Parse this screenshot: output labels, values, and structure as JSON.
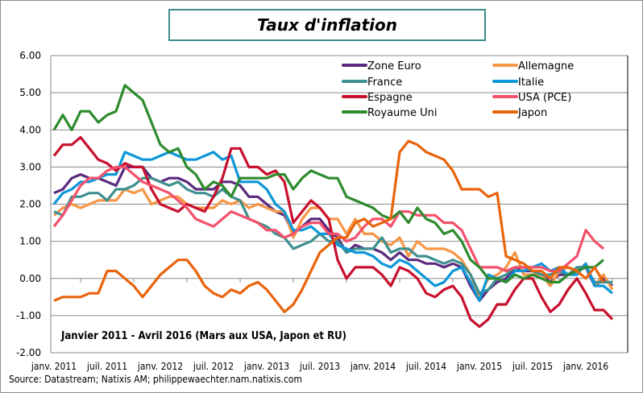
{
  "chart_data": {
    "type": "line",
    "title": "Taux d'inflation",
    "annotation": "Janvier 2011 - Avril 2016 (Mars aux USA, Japon et RU)",
    "source": "Source: Datastream; Natixis AM; philippewaechter.nam.natixis.com",
    "x_start": "2011-01",
    "x_frequency": "monthly",
    "x_tick_labels": [
      "janv. 2011",
      "juil. 2011",
      "janv. 2012",
      "juil. 2012",
      "janv. 2013",
      "juil. 2013",
      "janv. 2014",
      "juil. 2014",
      "janv. 2015",
      "juil. 2015",
      "janv. 2016"
    ],
    "y_tick_labels": [
      "6.00",
      "5.00",
      "4.00",
      "3.00",
      "2.00",
      "1.00",
      "0.00",
      "-1.00",
      "-2.00"
    ],
    "ylim": [
      -2,
      6
    ],
    "grid": true,
    "legend_placement": "top-right",
    "series": [
      {
        "name": "Zone Euro",
        "color": "#5b2a7e",
        "values": [
          2.3,
          2.4,
          2.7,
          2.8,
          2.7,
          2.7,
          2.6,
          2.5,
          3.0,
          3.0,
          3.0,
          2.7,
          2.6,
          2.7,
          2.7,
          2.6,
          2.4,
          2.4,
          2.4,
          2.6,
          2.6,
          2.5,
          2.2,
          2.2,
          2.0,
          1.8,
          1.7,
          1.2,
          1.4,
          1.6,
          1.6,
          1.3,
          1.1,
          0.7,
          0.9,
          0.8,
          0.8,
          0.7,
          0.5,
          0.7,
          0.5,
          0.5,
          0.4,
          0.4,
          0.3,
          0.4,
          0.3,
          -0.2,
          -0.6,
          -0.3,
          -0.1,
          0.0,
          0.3,
          0.2,
          0.2,
          0.1,
          -0.1,
          0.1,
          0.1,
          0.2,
          0.3,
          -0.2,
          0.0,
          -0.2
        ]
      },
      {
        "name": "Allemagne",
        "color": "#f79646",
        "values": [
          1.7,
          1.9,
          2.0,
          1.9,
          2.0,
          2.1,
          2.1,
          2.1,
          2.4,
          2.3,
          2.4,
          2.0,
          2.1,
          2.2,
          2.2,
          2.0,
          1.9,
          1.9,
          1.9,
          2.1,
          2.0,
          2.1,
          1.9,
          2.0,
          1.9,
          1.8,
          1.8,
          1.1,
          1.6,
          1.9,
          1.9,
          1.6,
          1.6,
          1.2,
          1.6,
          1.2,
          1.2,
          1.0,
          0.9,
          1.1,
          0.6,
          1.0,
          0.8,
          0.8,
          0.8,
          0.7,
          0.5,
          0.1,
          -0.5,
          0.0,
          0.1,
          0.3,
          0.7,
          0.1,
          0.1,
          0.1,
          -0.2,
          0.2,
          0.3,
          0.2,
          0.4,
          -0.2,
          0.1,
          -0.3
        ]
      },
      {
        "name": "France",
        "color": "#3f8f8f",
        "values": [
          1.8,
          1.7,
          2.2,
          2.2,
          2.3,
          2.3,
          2.1,
          2.4,
          2.4,
          2.5,
          2.7,
          2.7,
          2.6,
          2.5,
          2.6,
          2.4,
          2.3,
          2.3,
          2.2,
          2.4,
          2.2,
          2.1,
          1.6,
          1.5,
          1.4,
          1.2,
          1.1,
          0.8,
          0.9,
          1.0,
          1.2,
          1.0,
          1.0,
          0.7,
          0.8,
          0.8,
          0.8,
          1.1,
          0.7,
          0.8,
          0.8,
          0.6,
          0.6,
          0.5,
          0.4,
          0.5,
          0.4,
          0.1,
          -0.4,
          -0.3,
          0.0,
          0.1,
          0.3,
          0.3,
          0.2,
          0.1,
          0.1,
          0.2,
          0.1,
          0.3,
          0.3,
          -0.1,
          -0.1,
          -0.1
        ]
      },
      {
        "name": "Italie",
        "color": "#0d97d8",
        "values": [
          2.0,
          2.3,
          2.4,
          2.6,
          2.6,
          2.7,
          2.8,
          2.8,
          3.4,
          3.3,
          3.2,
          3.2,
          3.3,
          3.4,
          3.3,
          3.2,
          3.2,
          3.3,
          3.4,
          3.2,
          3.3,
          2.6,
          2.6,
          2.6,
          2.4,
          2.0,
          1.8,
          1.3,
          1.3,
          1.4,
          1.2,
          1.2,
          0.9,
          0.8,
          0.7,
          0.7,
          0.6,
          0.4,
          0.3,
          0.5,
          0.4,
          0.2,
          0.0,
          -0.2,
          -0.1,
          0.2,
          0.3,
          -0.1,
          -0.6,
          0.1,
          0.0,
          -0.1,
          0.2,
          0.2,
          0.3,
          0.4,
          0.2,
          0.3,
          0.1,
          0.1,
          0.4,
          -0.2,
          -0.2,
          -0.4
        ]
      },
      {
        "name": "Espagne",
        "color": "#c8102e",
        "values": [
          3.3,
          3.6,
          3.6,
          3.8,
          3.5,
          3.2,
          3.1,
          2.9,
          3.1,
          3.0,
          3.0,
          2.4,
          2.0,
          1.9,
          1.8,
          2.0,
          1.9,
          1.8,
          2.2,
          2.7,
          3.5,
          3.5,
          3.0,
          3.0,
          2.8,
          2.9,
          2.6,
          1.5,
          1.8,
          2.1,
          1.9,
          1.6,
          0.5,
          0.0,
          0.3,
          0.3,
          0.3,
          0.1,
          -0.2,
          0.3,
          0.2,
          0.0,
          -0.4,
          -0.5,
          -0.3,
          -0.2,
          -0.5,
          -1.1,
          -1.3,
          -1.1,
          -0.7,
          -0.7,
          -0.3,
          0.0,
          0.0,
          -0.5,
          -0.9,
          -0.7,
          -0.3,
          0.0,
          -0.4,
          -0.85,
          -0.85,
          -1.1
        ]
      },
      {
        "name": "USA (PCE)",
        "color": "#f4516c",
        "values": [
          1.4,
          1.7,
          2.1,
          2.5,
          2.7,
          2.7,
          2.9,
          3.0,
          3.0,
          2.8,
          2.6,
          2.5,
          2.4,
          2.3,
          2.1,
          1.9,
          1.6,
          1.5,
          1.4,
          1.6,
          1.8,
          1.7,
          1.6,
          1.5,
          1.3,
          1.3,
          1.1,
          1.2,
          1.4,
          1.5,
          1.5,
          1.2,
          1.2,
          1.0,
          1.1,
          1.4,
          1.6,
          1.6,
          1.4,
          1.8,
          1.8,
          1.7,
          1.7,
          1.7,
          1.5,
          1.5,
          1.3,
          0.8,
          0.3,
          0.3,
          0.3,
          0.2,
          0.3,
          0.3,
          0.3,
          0.3,
          0.2,
          0.2,
          0.4,
          0.6,
          1.3,
          1.0,
          0.8
        ]
      },
      {
        "name": "Royaume Uni",
        "color": "#2e8b2e",
        "values": [
          4.0,
          4.4,
          4.0,
          4.5,
          4.5,
          4.2,
          4.4,
          4.5,
          5.2,
          5.0,
          4.8,
          4.2,
          3.6,
          3.4,
          3.5,
          3.0,
          2.8,
          2.4,
          2.6,
          2.5,
          2.2,
          2.7,
          2.7,
          2.7,
          2.7,
          2.8,
          2.8,
          2.4,
          2.7,
          2.9,
          2.8,
          2.7,
          2.7,
          2.2,
          2.1,
          2.0,
          1.9,
          1.7,
          1.6,
          1.8,
          1.5,
          1.9,
          1.6,
          1.5,
          1.2,
          1.3,
          1.0,
          0.5,
          0.3,
          0.0,
          0.0,
          -0.1,
          0.1,
          0.0,
          0.1,
          0.0,
          -0.1,
          -0.1,
          0.1,
          0.2,
          0.3,
          0.3,
          0.5
        ]
      },
      {
        "name": "Japon",
        "color": "#e8640c",
        "values": [
          -0.6,
          -0.5,
          -0.5,
          -0.5,
          -0.4,
          -0.4,
          0.2,
          0.2,
          0.0,
          -0.2,
          -0.5,
          -0.2,
          0.1,
          0.3,
          0.5,
          0.5,
          0.2,
          -0.2,
          -0.4,
          -0.5,
          -0.3,
          -0.4,
          -0.2,
          -0.1,
          -0.3,
          -0.6,
          -0.9,
          -0.7,
          -0.3,
          0.2,
          0.7,
          0.9,
          1.1,
          1.1,
          1.5,
          1.6,
          1.4,
          1.5,
          1.6,
          3.4,
          3.7,
          3.6,
          3.4,
          3.3,
          3.2,
          2.9,
          2.4,
          2.4,
          2.4,
          2.2,
          2.3,
          0.6,
          0.5,
          0.4,
          0.2,
          0.2,
          0.0,
          0.3,
          0.3,
          0.2,
          0.0,
          0.3,
          -0.1
        ]
      }
    ]
  }
}
